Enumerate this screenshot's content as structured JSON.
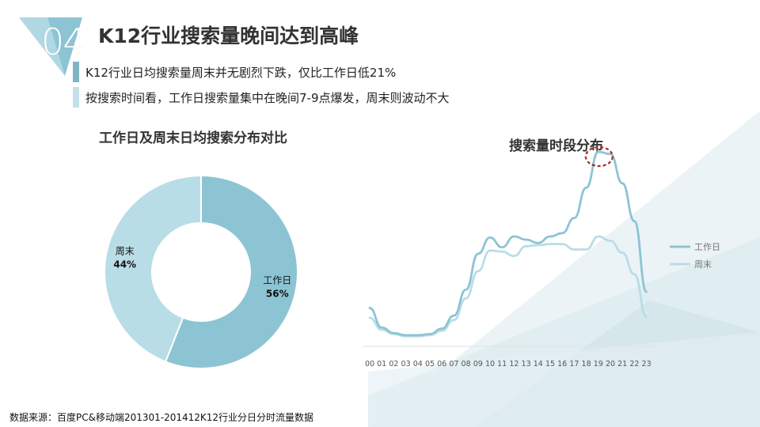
{
  "slide": {
    "number": "04",
    "title": "K12行业搜索量晚间达到高峰",
    "bullets": [
      "K12行业日均搜索量周末并无剧烈下跌，仅比工作日低21%",
      "按搜索时间看，工作日搜索量集中在晚间7-9点爆发，周末则波动不大"
    ],
    "source": "数据来源：百度PC&移动端201301-201412K12行业分日分时流量数据"
  },
  "colors": {
    "workday": "#8dc4d4",
    "weekend": "#b9dde6",
    "accent_dark": "#5a97ad",
    "highlight_circle": "#a52a2a"
  },
  "chart_data": [
    {
      "type": "pie",
      "title": "工作日及周末日均搜索分布对比",
      "donut": true,
      "slices": [
        {
          "label": "工作日",
          "value": 56,
          "value_label": "56%",
          "color": "#8dc4d4"
        },
        {
          "label": "周末",
          "value": 44,
          "value_label": "44%",
          "color": "#b9dde6"
        }
      ]
    },
    {
      "type": "line",
      "title": "搜索量时段分布",
      "x": [
        "00",
        "01",
        "02",
        "03",
        "04",
        "05",
        "06",
        "07",
        "08",
        "09",
        "10",
        "11",
        "12",
        "13",
        "14",
        "15",
        "16",
        "17",
        "18",
        "19",
        "20",
        "21",
        "22",
        "23"
      ],
      "series": [
        {
          "name": "工作日",
          "color": "#8dc4d4",
          "values": [
            28,
            10,
            5,
            3,
            3,
            4,
            9,
            21,
            45,
            78,
            93,
            84,
            94,
            91,
            88,
            94,
            97,
            111,
            139,
            172,
            170,
            143,
            108,
            43
          ]
        },
        {
          "name": "周末",
          "color": "#b9dde6",
          "values": [
            19,
            8,
            4,
            2,
            2,
            3,
            7,
            17,
            37,
            62,
            81,
            80,
            76,
            85,
            86,
            87,
            87,
            82,
            82,
            94,
            90,
            79,
            59,
            20
          ]
        }
      ],
      "highlight": {
        "x": "19",
        "shape": "dashed-circle"
      },
      "legend": "right",
      "grid": false
    }
  ]
}
